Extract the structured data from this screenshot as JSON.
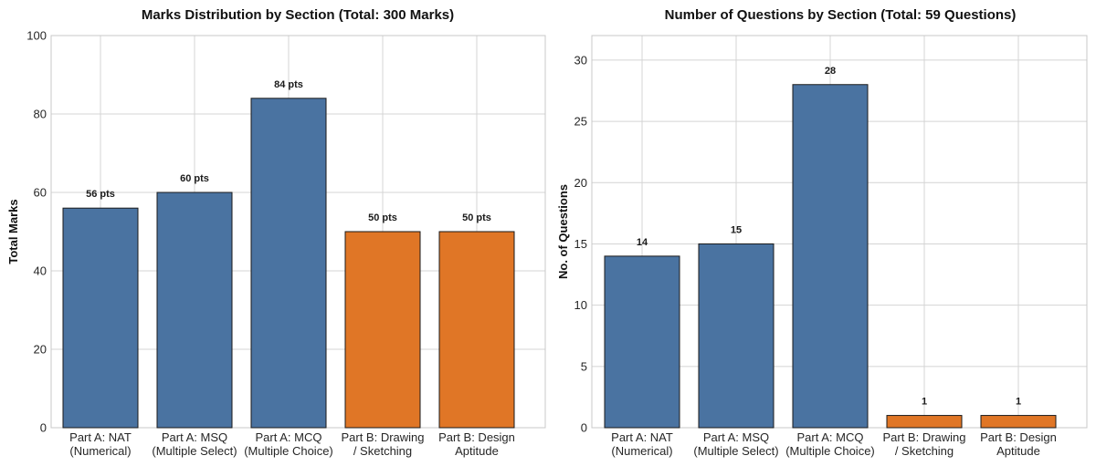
{
  "palette": {
    "part_a": "#4a73a1",
    "part_b": "#e07626"
  },
  "chart_data": [
    {
      "type": "bar",
      "title": "Marks Distribution by Section (Total: 300 Marks)",
      "xlabel": "",
      "ylabel": "Total Marks",
      "ylim": [
        0,
        100
      ],
      "yticks": [
        0,
        20,
        40,
        60,
        80,
        100
      ],
      "grid": true,
      "categories": [
        [
          "Part A: NAT",
          "(Numerical)"
        ],
        [
          "Part A: MSQ",
          "(Multiple Select)"
        ],
        [
          "Part A: MCQ",
          "(Multiple Choice)"
        ],
        [
          "Part B: Drawing",
          "/ Sketching"
        ],
        [
          "Part B: Design",
          "Aptitude"
        ]
      ],
      "values": [
        56,
        60,
        84,
        50,
        50
      ],
      "data_labels": [
        "56 pts",
        "60 pts",
        "84 pts",
        "50 pts",
        "50 pts"
      ],
      "bar_colors": [
        "#4a73a1",
        "#4a73a1",
        "#4a73a1",
        "#e07626",
        "#e07626"
      ]
    },
    {
      "type": "bar",
      "title": "Number of Questions by Section (Total: 59 Questions)",
      "xlabel": "",
      "ylabel": "No. of Questions",
      "ylim": [
        0,
        32
      ],
      "yticks": [
        0,
        5,
        10,
        15,
        20,
        25,
        30
      ],
      "grid": true,
      "categories": [
        [
          "Part A: NAT",
          "(Numerical)"
        ],
        [
          "Part A: MSQ",
          "(Multiple Select)"
        ],
        [
          "Part A: MCQ",
          "(Multiple Choice)"
        ],
        [
          "Part B: Drawing",
          "/ Sketching"
        ],
        [
          "Part B: Design",
          "Aptitude"
        ]
      ],
      "values": [
        14,
        15,
        28,
        1,
        1
      ],
      "data_labels": [
        "14",
        "15",
        "28",
        "1",
        "1"
      ],
      "bar_colors": [
        "#4a73a1",
        "#4a73a1",
        "#4a73a1",
        "#e07626",
        "#e07626"
      ]
    }
  ]
}
